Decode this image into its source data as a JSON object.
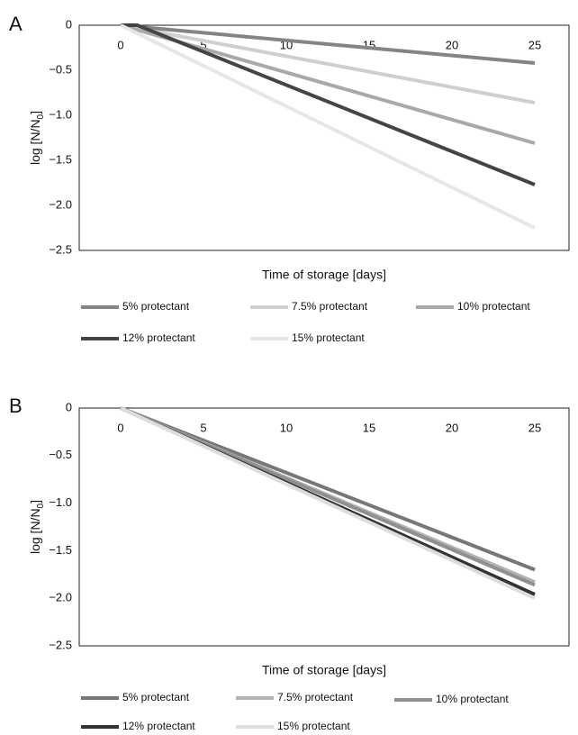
{
  "chart_data": [
    {
      "panel_label": "A",
      "type": "line",
      "xlabel": "Time of storage [days]",
      "ylabel": "log [N/N",
      "ylabel_sub": "0",
      "ylabel_close": "]",
      "xlim": [
        0,
        25
      ],
      "ylim": [
        -2.5,
        0
      ],
      "x_ticks": [
        "0",
        "5",
        "10",
        "15",
        "20",
        "25"
      ],
      "y_ticks": [
        "0",
        "−0.5",
        "−1.0",
        "−1.5",
        "−2.0",
        "−2.5"
      ],
      "grid": false,
      "legend_position": "bottom",
      "series": [
        {
          "name": "5% protectant",
          "color": "#848484",
          "x": [
            0,
            25
          ],
          "y": [
            0,
            -0.42
          ]
        },
        {
          "name": "7.5% protectant",
          "color": "#cfcfcf",
          "x": [
            0,
            25
          ],
          "y": [
            0,
            -0.86
          ]
        },
        {
          "name": "10% protectant",
          "color": "#a9a9a9",
          "x": [
            0,
            25
          ],
          "y": [
            0,
            -1.31
          ]
        },
        {
          "name": "12% protectant",
          "color": "#444444",
          "x": [
            0,
            1,
            25
          ],
          "y": [
            0,
            0,
            -1.77
          ]
        },
        {
          "name": "15% protectant",
          "color": "#e6e6e6",
          "x": [
            0,
            25
          ],
          "y": [
            0,
            -2.25
          ]
        }
      ]
    },
    {
      "panel_label": "B",
      "type": "line",
      "xlabel": "Time of storage [days]",
      "ylabel": "log [N/N",
      "ylabel_sub": "0",
      "ylabel_close": "]",
      "xlim": [
        0,
        25
      ],
      "ylim": [
        -2.5,
        0
      ],
      "x_ticks": [
        "0",
        "5",
        "10",
        "15",
        "20",
        "25"
      ],
      "y_ticks": [
        "0",
        "−0.5",
        "−1.0",
        "−1.5",
        "−2.0",
        "−2.5"
      ],
      "grid": false,
      "legend_position": "bottom",
      "series": [
        {
          "name": "5% protectant",
          "color": "#777777",
          "x": [
            0,
            25
          ],
          "y": [
            0,
            -1.7
          ]
        },
        {
          "name": "7.5% protectant",
          "color": "#b3b3b3",
          "x": [
            0,
            25
          ],
          "y": [
            0,
            -1.83
          ]
        },
        {
          "name": "10% protectant",
          "color": "#8f8f8f",
          "x": [
            0,
            25
          ],
          "y": [
            0,
            -1.86
          ]
        },
        {
          "name": "12% protectant",
          "color": "#333333",
          "x": [
            0,
            25
          ],
          "y": [
            0,
            -1.96
          ]
        },
        {
          "name": "15% protectant",
          "color": "#dddddd",
          "x": [
            0,
            25
          ],
          "y": [
            0,
            -2.0
          ]
        }
      ]
    }
  ]
}
